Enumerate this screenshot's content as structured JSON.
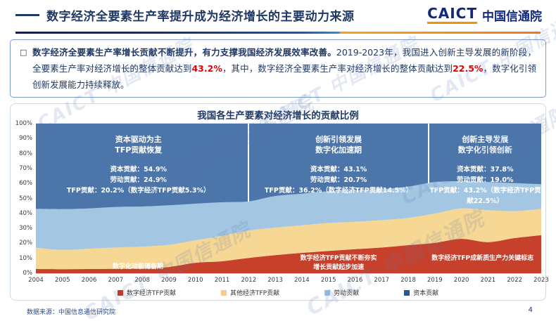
{
  "header": {
    "title": "数字经济全要素生产率提升成为经济增长的主要动力来源",
    "logo": {
      "caict": "CAICT",
      "name_cn": "中国信通院"
    }
  },
  "summary": {
    "bullet": "□",
    "lead_bold": "数字经济全要素生产率增长贡献不断提升，有力支撑我国经济发展效率改善。",
    "seg1": "2019-2023年，我国进入创新主导发展的新阶段，全要素生产率对经济增长的整体贡献达到",
    "val1": "43.2%",
    "seg2": "，其中，数字经济全要素生产率对经济增长的整体贡献达到",
    "val2": "22.5%",
    "seg3": "，数字化引领创新发展能力持续释放。"
  },
  "chart_data": {
    "type": "area",
    "stacked": true,
    "percent": true,
    "title": "我国各生产要素对经济增长的贡献比例",
    "x": [
      2004,
      2005,
      2006,
      2007,
      2008,
      2009,
      2010,
      2011,
      2012,
      2013,
      2014,
      2015,
      2016,
      2017,
      2018,
      2019,
      2020,
      2021,
      2022,
      2023
    ],
    "series": [
      {
        "key": "digital-tfp",
        "name": "数字经济TFP贡献",
        "color": "#C7402C",
        "legend_color": "#C0392B",
        "values": [
          2.8,
          2.7,
          2.8,
          3.0,
          3.2,
          4.2,
          7.0,
          8.0,
          10.2,
          12.1,
          13.6,
          14.9,
          16.1,
          17.2,
          18.8,
          20.3,
          23.0,
          20.8,
          23.5,
          25.5
        ]
      },
      {
        "key": "other-tfp",
        "name": "其他经济TFP贡献",
        "color": "#F6D794",
        "legend_color": "#F0CE8C",
        "values": [
          14.2,
          12.9,
          13.6,
          14.2,
          14.6,
          14.8,
          15.0,
          17.0,
          18.3,
          18.4,
          18.4,
          18.7,
          18.3,
          18.3,
          18.2,
          19.6,
          20.3,
          21.4,
          18.0,
          17.5
        ]
      },
      {
        "key": "labor",
        "name": "劳动贡献",
        "color": "#A3C6E3",
        "legend_color": "#9DC3E6",
        "values": [
          26.0,
          27.2,
          26.9,
          27.1,
          26.8,
          26.4,
          24.5,
          22.4,
          19.5,
          21.1,
          21.2,
          21.2,
          21.1,
          20.8,
          20.9,
          21.1,
          18.2,
          18.8,
          18.7,
          16.5
        ]
      },
      {
        "key": "capital",
        "name": "资本贡献",
        "color": "#4C76AA",
        "legend_color": "#2F5597",
        "values": [
          57.0,
          57.2,
          56.7,
          55.7,
          55.4,
          54.6,
          53.5,
          52.6,
          52.0,
          48.4,
          46.8,
          45.2,
          44.5,
          43.7,
          42.1,
          39.0,
          38.5,
          39.0,
          39.8,
          40.5
        ]
      }
    ],
    "ylim": [
      0,
      100
    ],
    "ytick_step": 10,
    "grid": false,
    "legend_position": "bottom",
    "panels": [
      {
        "title_lines": [
          "资本驱动为主",
          "TFP贡献恢复"
        ],
        "stat_lines": [
          "资本贡献：54.9%",
          "劳动贡献：24.9%",
          "TFP贡献：20.2%（数字经济TFP贡献5.3%）"
        ],
        "center_pct": 20.3,
        "width_pct": 40
      },
      {
        "title_lines": [
          "创新引领发展",
          "数字化加速期"
        ],
        "stat_lines": [
          "资本贡献：43.1%",
          "劳动贡献：20.7%",
          "TFP贡献：36.2%（数字经济TFP贡献14.5%）"
        ],
        "center_pct": 59.9,
        "width_pct": 38
      },
      {
        "title_lines": [
          "创新主导发展",
          "数字化引领创新"
        ],
        "stat_lines": [
          "资本贡献：37.8%",
          "劳动贡献：19.0%",
          "TFP贡献：43.2%（数字经济TFP贡",
          "献22.5%）"
        ],
        "center_pct": 88.9,
        "width_pct": 22
      }
    ],
    "dividers": [
      {
        "x_pct": 42.0,
        "height_pct": 52
      },
      {
        "x_pct": 77.7,
        "height_pct": 40
      }
    ],
    "annotations": [
      {
        "lines": [
          "数字化动能储备期"
        ],
        "center_pct": 20.2,
        "top_pct": 93
      },
      {
        "lines": [
          "数字经济TFP贡献不断夯实",
          "增长贡献起步加速"
        ],
        "center_pct": 59.9,
        "top_pct": 87.5
      },
      {
        "lines": [
          "数字经济TFP成新质生产力关键标志"
        ],
        "center_pct": 88.4,
        "top_pct": 87.5
      }
    ]
  },
  "watermark_text": "CAICT 中国信通院",
  "footer": {
    "source": "数据来源：中国信息通信研究院",
    "page": "4"
  },
  "colors": {
    "navy": "#1F3864",
    "accent_red": "#E60000",
    "rule_orange": "#F0941E",
    "rule_blue": "#1E6FBE"
  }
}
